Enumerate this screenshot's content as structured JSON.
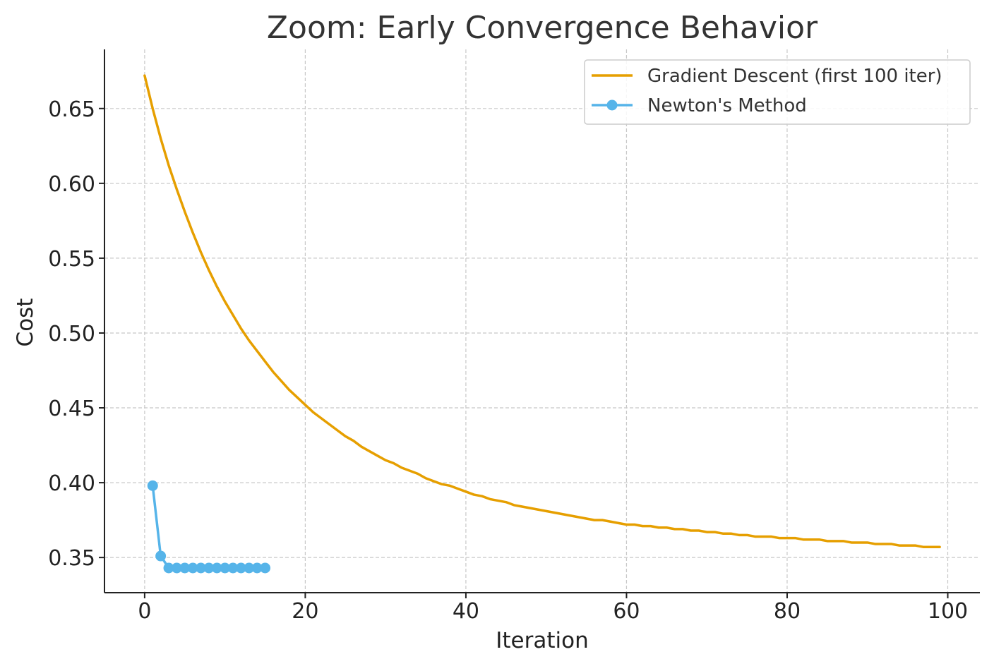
{
  "chart_data": {
    "type": "line",
    "title": "Zoom: Early Convergence Behavior",
    "xlabel": "Iteration",
    "ylabel": "Cost",
    "xlim": [
      -5,
      104
    ],
    "ylim": [
      0.3265,
      0.6895
    ],
    "x_ticks": [
      0,
      20,
      40,
      60,
      80,
      100
    ],
    "x_tick_labels": [
      "0",
      "20",
      "40",
      "60",
      "80",
      "100"
    ],
    "y_ticks": [
      0.35,
      0.4,
      0.45,
      0.5,
      0.55,
      0.6,
      0.65
    ],
    "y_tick_labels": [
      "0.35",
      "0.40",
      "0.45",
      "0.50",
      "0.55",
      "0.60",
      "0.65"
    ],
    "grid": true,
    "legend_position": "top-right",
    "series": [
      {
        "name": "Gradient Descent (first 100 iter)",
        "color": "#E69F00",
        "marker": "none",
        "x": [
          0,
          1,
          2,
          3,
          4,
          5,
          6,
          7,
          8,
          9,
          10,
          11,
          12,
          13,
          14,
          15,
          16,
          17,
          18,
          19,
          20,
          21,
          22,
          23,
          24,
          25,
          26,
          27,
          28,
          29,
          30,
          31,
          32,
          33,
          34,
          35,
          36,
          37,
          38,
          39,
          40,
          41,
          42,
          43,
          44,
          45,
          46,
          47,
          48,
          49,
          50,
          51,
          52,
          53,
          54,
          55,
          56,
          57,
          58,
          59,
          60,
          61,
          62,
          63,
          64,
          65,
          66,
          67,
          68,
          69,
          70,
          71,
          72,
          73,
          74,
          75,
          76,
          77,
          78,
          79,
          80,
          81,
          82,
          83,
          84,
          85,
          86,
          87,
          88,
          89,
          90,
          91,
          92,
          93,
          94,
          95,
          96,
          97,
          98,
          99
        ],
        "y": [
          0.672,
          0.65,
          0.63,
          0.612,
          0.596,
          0.581,
          0.567,
          0.554,
          0.542,
          0.531,
          0.521,
          0.512,
          0.503,
          0.495,
          0.488,
          0.481,
          0.474,
          0.468,
          0.462,
          0.457,
          0.452,
          0.447,
          0.443,
          0.439,
          0.435,
          0.431,
          0.428,
          0.424,
          0.421,
          0.418,
          0.415,
          0.413,
          0.41,
          0.408,
          0.406,
          0.403,
          0.401,
          0.399,
          0.398,
          0.396,
          0.394,
          0.392,
          0.391,
          0.389,
          0.388,
          0.387,
          0.385,
          0.384,
          0.383,
          0.382,
          0.381,
          0.38,
          0.379,
          0.378,
          0.377,
          0.376,
          0.375,
          0.375,
          0.374,
          0.373,
          0.372,
          0.372,
          0.371,
          0.371,
          0.37,
          0.37,
          0.369,
          0.369,
          0.368,
          0.368,
          0.367,
          0.367,
          0.366,
          0.366,
          0.365,
          0.365,
          0.364,
          0.364,
          0.364,
          0.363,
          0.363,
          0.363,
          0.362,
          0.362,
          0.362,
          0.361,
          0.361,
          0.361,
          0.36,
          0.36,
          0.36,
          0.359,
          0.359,
          0.359,
          0.358,
          0.358,
          0.358,
          0.357,
          0.357,
          0.357
        ]
      },
      {
        "name": "Newton's Method",
        "color": "#56B4E9",
        "marker": "circle",
        "x": [
          1,
          2,
          3,
          4,
          5,
          6,
          7,
          8,
          9,
          10,
          11,
          12,
          13,
          14,
          15
        ],
        "y": [
          0.398,
          0.351,
          0.343,
          0.343,
          0.343,
          0.343,
          0.343,
          0.343,
          0.343,
          0.343,
          0.343,
          0.343,
          0.343,
          0.343,
          0.343
        ]
      }
    ]
  }
}
